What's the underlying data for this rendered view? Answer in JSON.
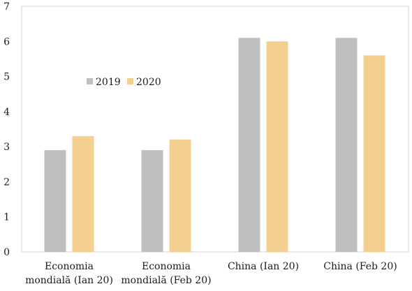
{
  "chart_data": {
    "type": "bar",
    "categories": [
      [
        "Economia",
        "mondială (Ian 20)"
      ],
      [
        "Economia",
        "mondială (Feb 20)"
      ],
      [
        "China (Ian 20)"
      ],
      [
        "China (Feb 20)"
      ]
    ],
    "series": [
      {
        "name": "2019",
        "color": "#bfbfbf",
        "values": [
          2.9,
          2.9,
          6.1,
          6.1
        ]
      },
      {
        "name": "2020",
        "color": "#f3d08f",
        "values": [
          3.3,
          3.2,
          6.0,
          5.6
        ]
      }
    ],
    "title": "",
    "xlabel": "",
    "ylabel": "",
    "ylim": [
      0,
      7
    ],
    "yticks": [
      0,
      1,
      2,
      3,
      4,
      5,
      6,
      7
    ],
    "grid": false,
    "legend_position": "inside-left"
  }
}
